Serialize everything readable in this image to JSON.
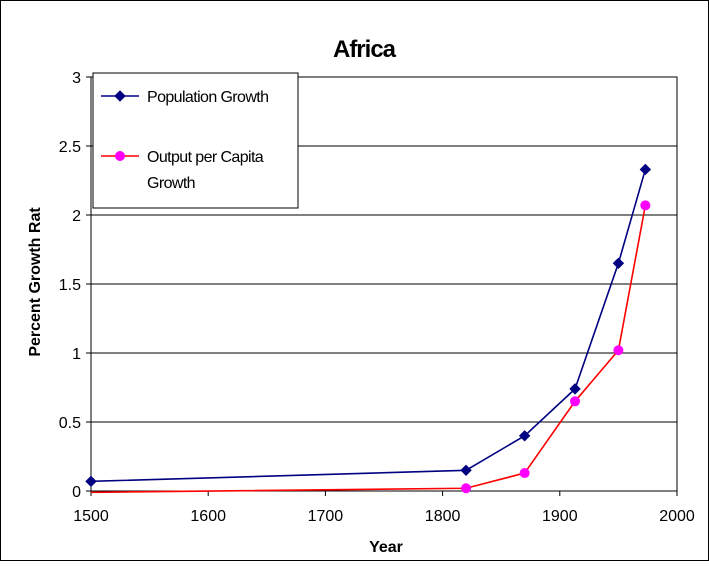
{
  "chart_data": {
    "type": "line",
    "title": "Africa",
    "xlabel": "Year",
    "ylabel": "Percent Growth Rat",
    "xlim": [
      1500,
      2000
    ],
    "ylim": [
      0,
      3
    ],
    "x_ticks": [
      "1500",
      "1600",
      "1700",
      "1800",
      "1900",
      "2000"
    ],
    "y_ticks": [
      "0",
      "0.5",
      "1",
      "1.5",
      "2",
      "2.5",
      "3"
    ],
    "grid": "horizontal",
    "legend_position": "top-left",
    "series": [
      {
        "name": "Population Growth",
        "color": "#000080",
        "marker": "diamond",
        "points": [
          {
            "x": 1500,
            "y": 0.07
          },
          {
            "x": 1820,
            "y": 0.15
          },
          {
            "x": 1870,
            "y": 0.4
          },
          {
            "x": 1913,
            "y": 0.74
          },
          {
            "x": 1950,
            "y": 1.65
          },
          {
            "x": 1973,
            "y": 2.33
          }
        ]
      },
      {
        "name": "Output per Capita Growth",
        "name_lines": [
          "Output per Capita",
          "Growth"
        ],
        "color": "#ff0000",
        "marker_color": "#ff00ff",
        "marker": "circle",
        "points": [
          {
            "x": 1500,
            "y": -0.01
          },
          {
            "x": 1820,
            "y": 0.02
          },
          {
            "x": 1870,
            "y": 0.13
          },
          {
            "x": 1913,
            "y": 0.65
          },
          {
            "x": 1950,
            "y": 1.02
          },
          {
            "x": 1973,
            "y": 2.07
          }
        ]
      }
    ]
  }
}
